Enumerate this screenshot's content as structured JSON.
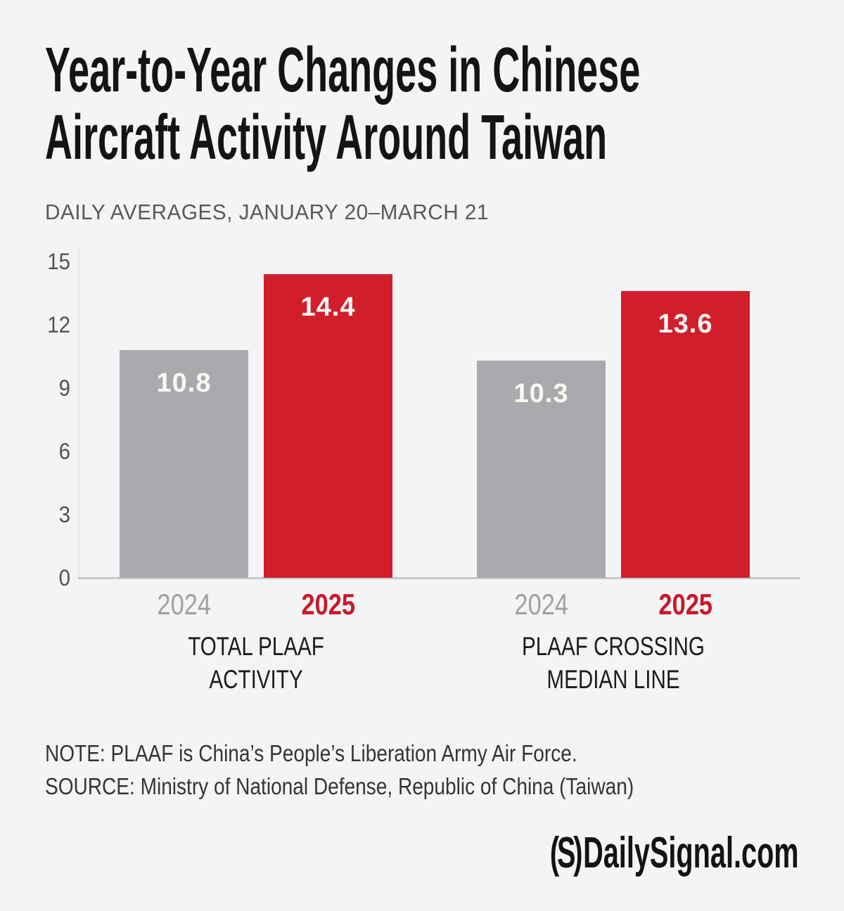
{
  "colors": {
    "background": "#f3f4f5",
    "bar_gray": "#a9aaad",
    "bar_red": "#d11e2d",
    "year_2024_text": "#9fa0a3",
    "year_2025_text": "#c61a2b",
    "title_text": "#141415",
    "subtitle_text": "#58595b",
    "tick_text": "#515254",
    "value_label_text": "#fdf8f2"
  },
  "header": {
    "title_line1": "Year-to-Year Changes in Chinese",
    "title_line2": "Aircraft Activity Around Taiwan",
    "subtitle": "DAILY AVERAGES, JANUARY 20–MARCH 21"
  },
  "chart_data": {
    "type": "bar",
    "title": "Year-to-Year Changes in Chinese Aircraft Activity Around Taiwan",
    "subtitle": "DAILY AVERAGES, JANUARY 20–MARCH 21",
    "categories": [
      "TOTAL PLAAF ACTIVITY",
      "PLAAF CROSSING MEDIAN LINE"
    ],
    "category_lines": [
      [
        "TOTAL PLAAF",
        "ACTIVITY"
      ],
      [
        "PLAAF CROSSING",
        "MEDIAN LINE"
      ]
    ],
    "series": [
      {
        "name": "2024",
        "values": [
          10.8,
          10.3
        ],
        "color": "#a9aaad",
        "label_color": "#9fa0a3",
        "label_weight": "400"
      },
      {
        "name": "2025",
        "values": [
          14.4,
          13.6
        ],
        "color": "#d11e2d",
        "label_color": "#c61a2b",
        "label_weight": "700"
      }
    ],
    "y_ticks": [
      15,
      12,
      9,
      6,
      3,
      0
    ],
    "ylim": [
      0,
      15
    ],
    "grid": false,
    "legend": "none",
    "value_labels": [
      "10.8",
      "14.4",
      "10.3",
      "13.6"
    ]
  },
  "notes": {
    "note": "NOTE: PLAAF is China’s People’s Liberation Army Air Force.",
    "source": "SOURCE: Ministry of National Defense, Republic of China (Taiwan)"
  },
  "footer": {
    "logo_s": "(S)",
    "logo_text": "DailySignal.com"
  }
}
